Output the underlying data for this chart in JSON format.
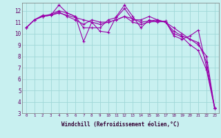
{
  "xlabel": "Windchill (Refroidissement éolien,°C)",
  "bg_color": "#c8f0f0",
  "grid_color": "#a0d8d8",
  "line_color": "#9900aa",
  "series": [
    [
      10.5,
      11.2,
      11.5,
      11.6,
      12.5,
      11.8,
      11.5,
      9.3,
      11.0,
      10.2,
      10.1,
      11.5,
      12.5,
      11.5,
      10.5,
      11.2,
      11.0,
      11.1,
      9.8,
      9.5,
      9.8,
      10.3,
      7.0,
      3.5
    ],
    [
      10.5,
      11.2,
      11.6,
      11.6,
      11.8,
      11.6,
      11.4,
      11.2,
      11.0,
      10.8,
      11.0,
      11.2,
      11.5,
      11.3,
      11.0,
      11.1,
      11.2,
      11.0,
      10.5,
      10.0,
      9.5,
      9.0,
      8.0,
      3.4
    ],
    [
      10.5,
      11.2,
      11.5,
      11.7,
      12.0,
      11.8,
      11.5,
      10.5,
      10.5,
      10.5,
      11.2,
      11.4,
      12.2,
      11.2,
      11.2,
      11.5,
      11.2,
      11.0,
      10.0,
      9.7,
      9.0,
      8.5,
      6.8,
      3.4
    ],
    [
      10.5,
      11.2,
      11.5,
      11.6,
      11.9,
      11.5,
      11.2,
      10.8,
      11.2,
      11.0,
      11.0,
      11.2,
      11.5,
      11.0,
      10.8,
      11.0,
      11.1,
      11.0,
      10.2,
      9.8,
      9.5,
      9.2,
      7.5,
      3.4
    ]
  ],
  "x_values": [
    0,
    1,
    2,
    3,
    4,
    5,
    6,
    7,
    8,
    9,
    10,
    11,
    12,
    13,
    14,
    15,
    16,
    17,
    18,
    19,
    20,
    21,
    22,
    23
  ],
  "ylim": [
    3,
    12.7
  ],
  "yticks": [
    3,
    4,
    5,
    6,
    7,
    8,
    9,
    10,
    11,
    12
  ],
  "xlim": [
    -0.5,
    23.5
  ],
  "marker": "+"
}
